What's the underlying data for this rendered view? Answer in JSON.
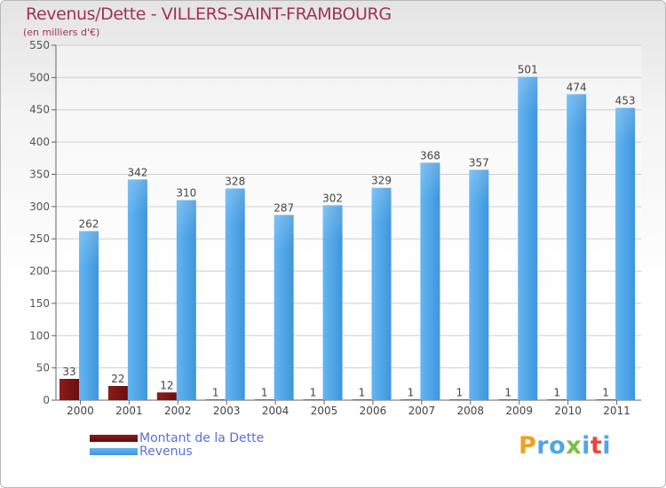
{
  "chart_data": {
    "type": "bar",
    "title": "Revenus/Dette - VILLERS-SAINT-FRAMBOURG",
    "subtitle": "(en milliers d'€)",
    "categories": [
      "2000",
      "2001",
      "2002",
      "2003",
      "2004",
      "2005",
      "2006",
      "2007",
      "2008",
      "2009",
      "2010",
      "2011"
    ],
    "series": [
      {
        "name": "Montant de la Dette",
        "color": "#7a1212",
        "values": [
          33,
          22,
          12,
          1,
          1,
          1,
          1,
          1,
          1,
          1,
          1,
          1
        ]
      },
      {
        "name": "Revenus",
        "color": "#4ea6e8",
        "values": [
          262,
          342,
          310,
          328,
          287,
          302,
          329,
          368,
          357,
          501,
          474,
          453
        ]
      }
    ],
    "ylim": [
      0,
      550
    ],
    "yticks": [
      0,
      50,
      100,
      150,
      200,
      250,
      300,
      350,
      400,
      450,
      500,
      550
    ],
    "grid": true,
    "legend_position": "bottom-left"
  },
  "logo": {
    "letters": [
      "P",
      "r",
      "o",
      "x",
      "i",
      "t",
      "i"
    ],
    "colors": [
      "#f0a020",
      "#4ea6e8",
      "#4ea6e8",
      "#7ac142",
      "#4ea6e8",
      "#e8463c",
      "#4ea6e8"
    ]
  }
}
